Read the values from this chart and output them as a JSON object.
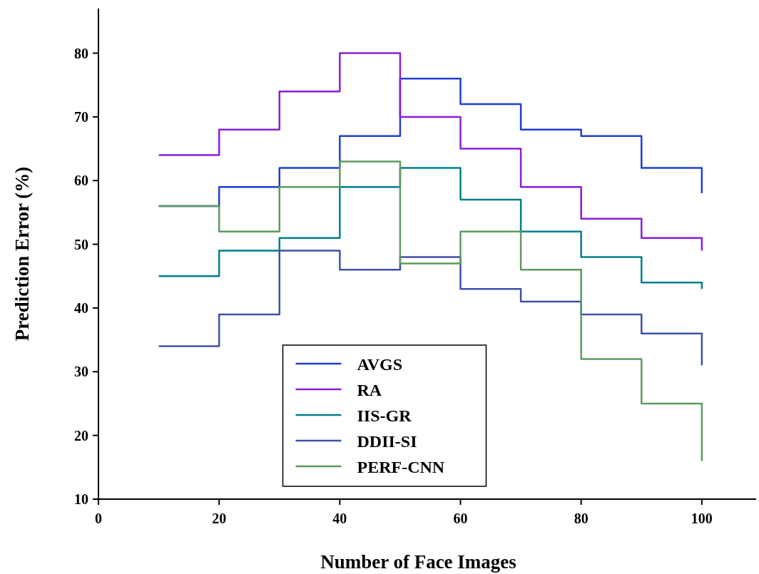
{
  "chart_data": {
    "type": "step",
    "xlabel": "Number of Face Images",
    "ylabel": "Prediction Error (%)",
    "x": [
      10,
      20,
      30,
      40,
      50,
      60,
      70,
      80,
      90,
      100
    ],
    "xlim": [
      0,
      109
    ],
    "xticks": [
      0,
      20,
      40,
      60,
      80,
      100
    ],
    "ylim": [
      10,
      87
    ],
    "yticks": [
      10,
      20,
      30,
      40,
      50,
      60,
      70,
      80
    ],
    "grid": false,
    "legend": "bottom",
    "marker": "none",
    "line_style": "solid",
    "series": [
      {
        "name": "AVGS",
        "color": "#1f3fd0",
        "values": [
          56,
          59,
          62,
          67,
          76,
          72,
          68,
          67,
          62,
          58
        ]
      },
      {
        "name": "RA",
        "color": "#8a1fd6",
        "values": [
          64,
          68,
          74,
          80,
          70,
          65,
          59,
          54,
          51,
          49
        ]
      },
      {
        "name": "IIS-GR",
        "color": "#00808a",
        "values": [
          45,
          49,
          51,
          59,
          62,
          57,
          52,
          48,
          44,
          43
        ]
      },
      {
        "name": "DDII-SI",
        "color": "#4050a8",
        "values": [
          34,
          39,
          49,
          46,
          48,
          43,
          41,
          39,
          36,
          31
        ]
      },
      {
        "name": "PERF-CNN",
        "color": "#5f9a5f",
        "values": [
          56,
          52,
          59,
          63,
          47,
          52,
          46,
          32,
          25,
          16
        ]
      }
    ]
  }
}
